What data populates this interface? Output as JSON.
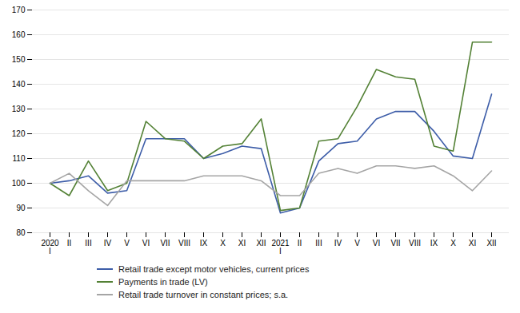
{
  "chart_data": {
    "type": "line",
    "categories": [
      "2020\nI",
      "II",
      "III",
      "IV",
      "V",
      "VI",
      "VII",
      "VIII",
      "IX",
      "X",
      "XI",
      "XII",
      "2021\nI",
      "II",
      "III",
      "IV",
      "V",
      "VI",
      "VII",
      "VIII",
      "IX",
      "X",
      "XI",
      "XII"
    ],
    "series": [
      {
        "name": "Retail trade except motor vehicles, current prices",
        "color": "#3d5da8",
        "values": [
          100,
          101,
          103,
          96,
          97,
          118,
          118,
          118,
          110,
          112,
          115,
          114,
          88,
          90,
          109,
          116,
          117,
          126,
          129,
          129,
          121,
          111,
          110,
          136
        ]
      },
      {
        "name": "Payments in trade (LV)",
        "color": "#538135",
        "values": [
          100,
          95,
          109,
          97,
          100,
          125,
          118,
          117,
          110,
          115,
          116,
          126,
          89,
          90,
          117,
          118,
          131,
          146,
          143,
          142,
          115,
          113,
          157,
          157
        ]
      },
      {
        "name": "Retail trade turnover in constant prices; s.a.",
        "color": "#a5a5a5",
        "values": [
          100,
          104,
          97,
          91,
          101,
          101,
          101,
          101,
          103,
          103,
          103,
          101,
          95,
          95,
          104,
          106,
          104,
          107,
          107,
          106,
          107,
          103,
          97,
          105
        ]
      }
    ],
    "ylim": [
      80,
      170
    ],
    "yticks": [
      80,
      90,
      100,
      110,
      120,
      130,
      140,
      150,
      160,
      170
    ],
    "grid": true,
    "legend": "bottom"
  }
}
